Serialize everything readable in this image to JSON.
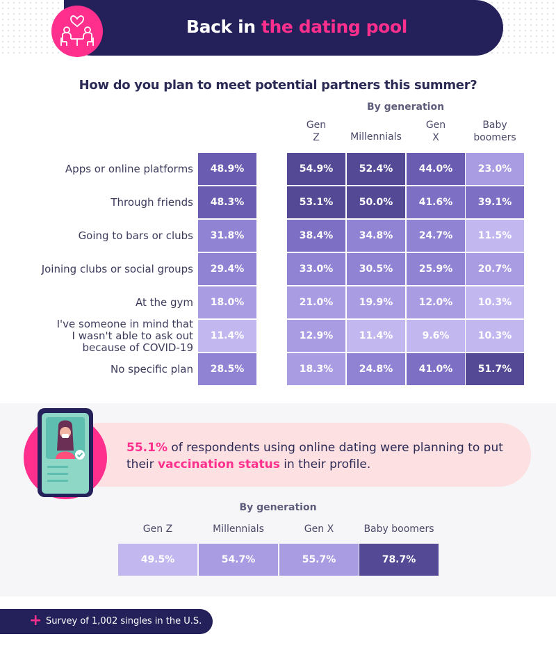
{
  "header": {
    "title_part1": "Back in",
    "title_part2": "the dating pool",
    "icon": "dating-couple-icon"
  },
  "question": "How do you plan to meet potential partners this summer?",
  "chart_data": [
    {
      "type": "table",
      "title": "How do you plan to meet potential partners this summer?",
      "group_heading": "By generation",
      "columns": [
        "Gen Z",
        "Millennials",
        "Gen X",
        "Baby boomers"
      ],
      "rows": [
        {
          "label": "Apps or online platforms",
          "overall": "48.9%",
          "overall_value": 48.9,
          "values": [
            "54.9%",
            "52.4%",
            "44.0%",
            "23.0%"
          ],
          "nums": [
            54.9,
            52.4,
            44.0,
            23.0
          ]
        },
        {
          "label": "Through friends",
          "overall": "48.3%",
          "overall_value": 48.3,
          "values": [
            "53.1%",
            "50.0%",
            "41.6%",
            "39.1%"
          ],
          "nums": [
            53.1,
            50.0,
            41.6,
            39.1
          ]
        },
        {
          "label": "Going to bars or clubs",
          "overall": "31.8%",
          "overall_value": 31.8,
          "values": [
            "38.4%",
            "34.8%",
            "24.7%",
            "11.5%"
          ],
          "nums": [
            38.4,
            34.8,
            24.7,
            11.5
          ]
        },
        {
          "label": "Joining clubs or social groups",
          "overall": "29.4%",
          "overall_value": 29.4,
          "values": [
            "33.0%",
            "30.5%",
            "25.9%",
            "20.7%"
          ],
          "nums": [
            33.0,
            30.5,
            25.9,
            20.7
          ]
        },
        {
          "label": "At the gym",
          "overall": "18.0%",
          "overall_value": 18.0,
          "values": [
            "21.0%",
            "19.9%",
            "12.0%",
            "10.3%"
          ],
          "nums": [
            21.0,
            19.9,
            12.0,
            10.3
          ]
        },
        {
          "label": "I've someone in mind that I wasn't able to ask out because of COVID-19",
          "label_lines": [
            "I've someone in mind that",
            "I wasn't able to ask out",
            "because of COVID-19"
          ],
          "overall": "11.4%",
          "overall_value": 11.4,
          "values": [
            "12.9%",
            "11.4%",
            "9.6%",
            "10.3%"
          ],
          "nums": [
            12.9,
            11.4,
            9.6,
            10.3
          ]
        },
        {
          "label": "No specific plan",
          "overall": "28.5%",
          "overall_value": 28.5,
          "values": [
            "18.3%",
            "24.8%",
            "41.0%",
            "51.7%"
          ],
          "nums": [
            18.3,
            24.8,
            41.0,
            51.7
          ]
        }
      ]
    },
    {
      "type": "table",
      "title": "By generation",
      "columns": [
        "Gen Z",
        "Millennials",
        "Gen X",
        "Baby boomers"
      ],
      "values": [
        "49.5%",
        "54.7%",
        "55.7%",
        "78.7%"
      ],
      "nums": [
        49.5,
        54.7,
        55.7,
        78.7
      ]
    }
  ],
  "callout": {
    "stat": "55.1%",
    "text_1": " of respondents using online dating were planning to put their ",
    "highlight": "vaccination status",
    "text_2": " in their profile.",
    "icon": "phone-profile-icon"
  },
  "footer": {
    "plus": "+",
    "text": "Survey of 1,002 singles in the U.S."
  },
  "colors": {
    "navy": "#24215a",
    "pink": "#ff2f8e",
    "scale": [
      "#c2b8ef",
      "#a99ce2",
      "#9183d4",
      "#7d6fc4",
      "#6a5cb0",
      "#544994"
    ]
  }
}
